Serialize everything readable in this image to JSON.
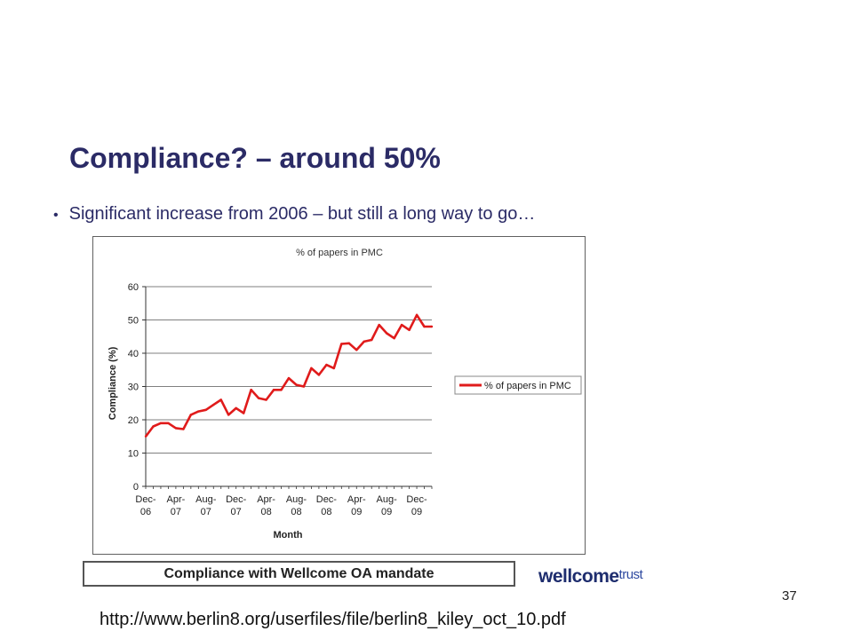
{
  "slide": {
    "title": "Compliance? – around 50%",
    "bullet": "Significant increase from 2006 – but still a long way to go…",
    "caption": "Compliance with Wellcome OA mandate",
    "logo_word": "wellcome",
    "logo_suffix": "trust",
    "page_number": "37",
    "url": "http://www.berlin8.org/userfiles/file/berlin8_kiley_oct_10.pdf"
  },
  "chart_data": {
    "type": "line",
    "title": "% of papers in PMC",
    "xlabel": "Month",
    "ylabel": "Compliance (%)",
    "ylim": [
      0,
      60
    ],
    "yticks": [
      0,
      10,
      20,
      30,
      40,
      50,
      60
    ],
    "grid": "horizontal",
    "legend_position": "right",
    "line_color": "#e01b1b",
    "x_tick_labels": [
      {
        "index": 0,
        "line1": "Dec-",
        "line2": "06"
      },
      {
        "index": 4,
        "line1": "Apr-",
        "line2": "07"
      },
      {
        "index": 8,
        "line1": "Aug-",
        "line2": "07"
      },
      {
        "index": 12,
        "line1": "Dec-",
        "line2": "07"
      },
      {
        "index": 16,
        "line1": "Apr-",
        "line2": "08"
      },
      {
        "index": 20,
        "line1": "Aug-",
        "line2": "08"
      },
      {
        "index": 24,
        "line1": "Dec-",
        "line2": "08"
      },
      {
        "index": 28,
        "line1": "Apr-",
        "line2": "09"
      },
      {
        "index": 32,
        "line1": "Aug-",
        "line2": "09"
      },
      {
        "index": 36,
        "line1": "Dec-",
        "line2": "09"
      }
    ],
    "series": [
      {
        "name": "% of papers in PMC",
        "values": [
          15,
          18,
          19,
          19,
          17.5,
          17.2,
          21.5,
          22.5,
          23,
          24.5,
          26,
          21.5,
          23.5,
          22,
          29,
          26.5,
          26,
          29,
          29,
          32.5,
          30.5,
          30,
          35.5,
          33.5,
          36.5,
          35.5,
          42.8,
          43,
          41,
          43.5,
          44,
          48.5,
          46,
          44.5,
          48.5,
          47,
          51.5,
          48,
          48
        ]
      }
    ]
  }
}
